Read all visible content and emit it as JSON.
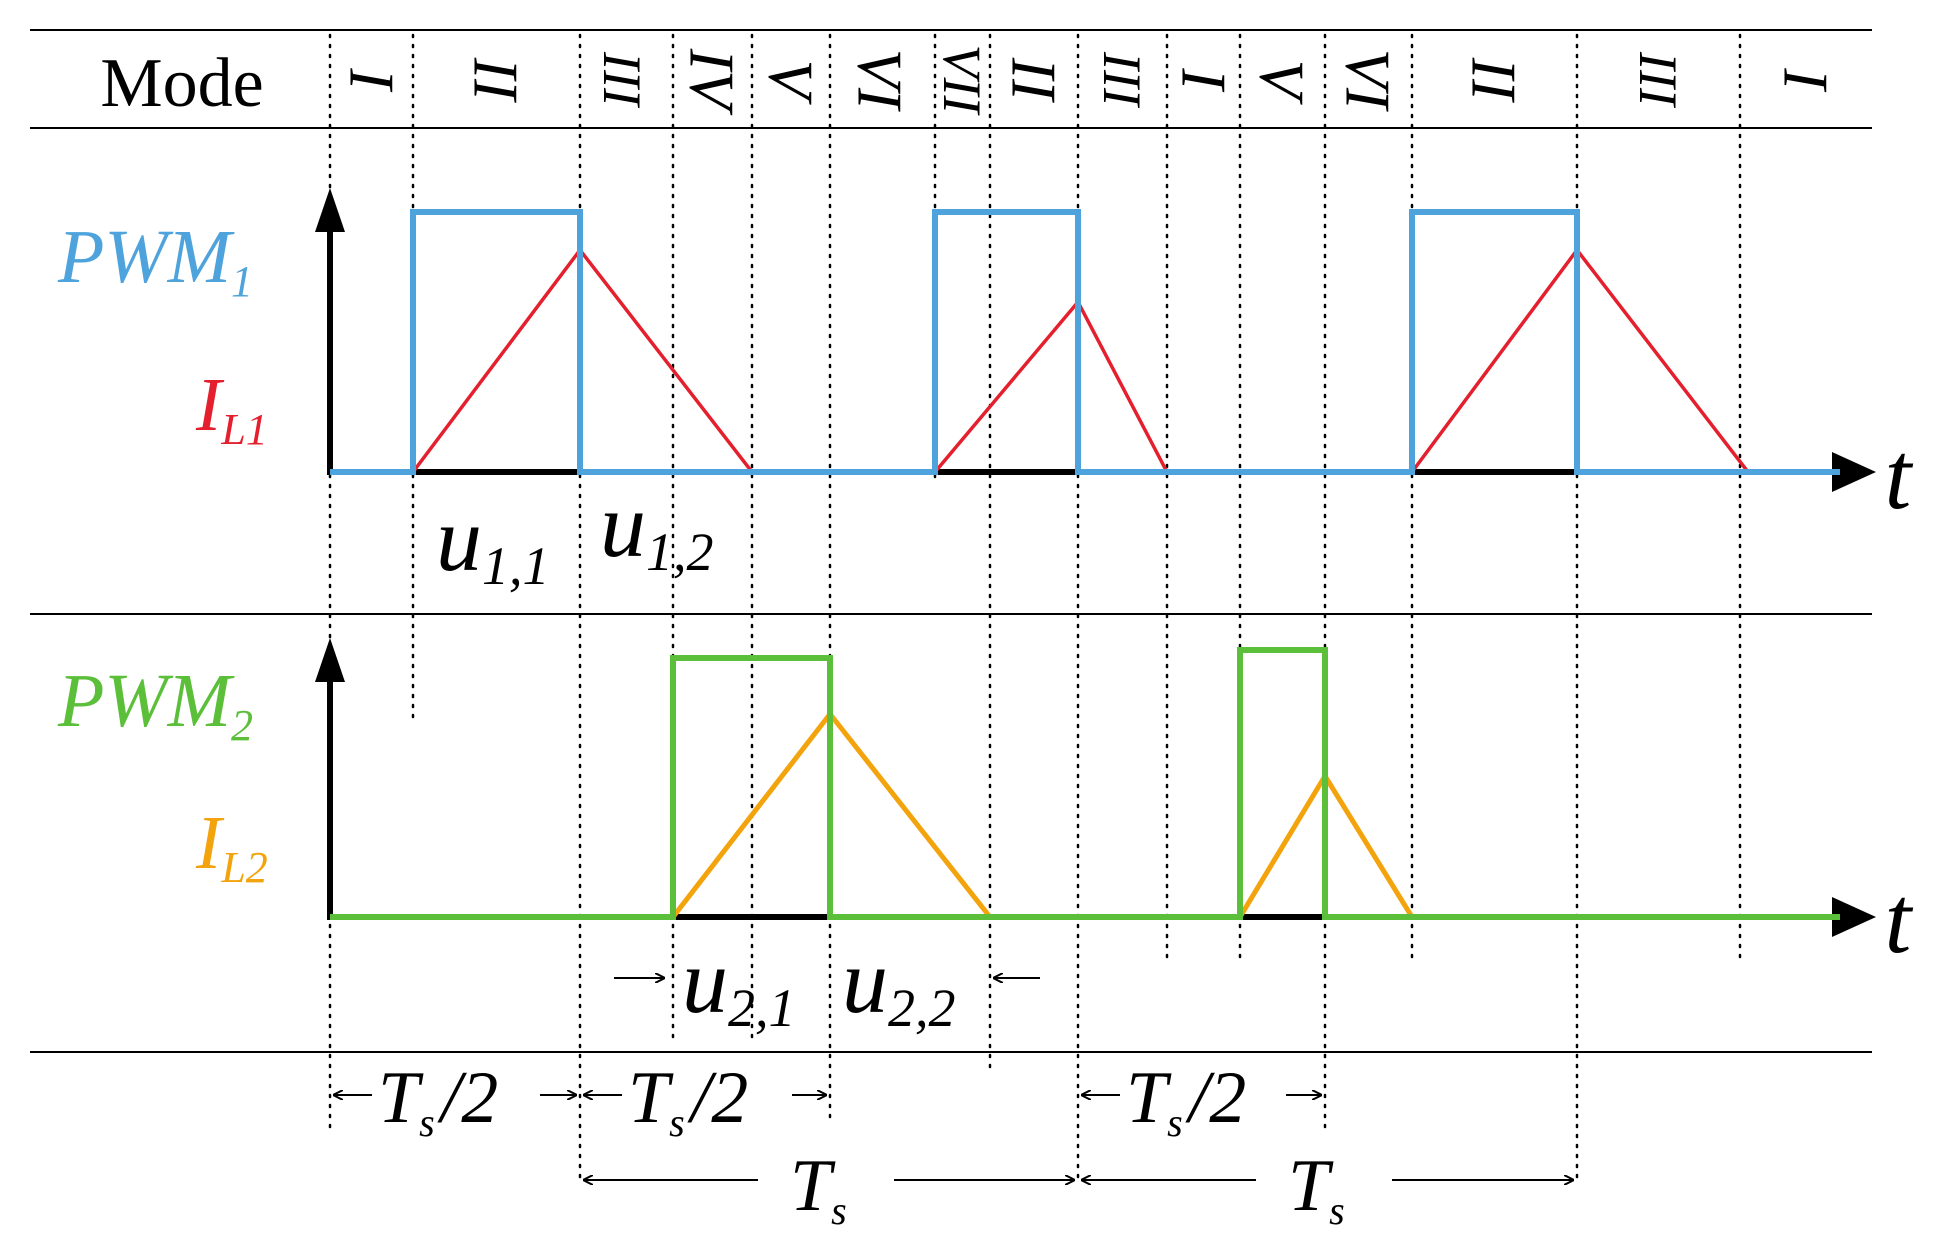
{
  "header": {
    "mode_label": "Mode"
  },
  "modes": [
    "I",
    "II",
    "III",
    "IV",
    "V",
    "VI",
    "VII",
    "II",
    "III",
    "I",
    "V",
    "VI",
    "II",
    "III",
    "I"
  ],
  "axes": {
    "time_label": "t"
  },
  "channel1": {
    "pwm_label_main": "PWM",
    "pwm_label_sub": "1",
    "current_label_main": "I",
    "current_label_sub": "L1",
    "u_first_main": "u",
    "u_first_sub": "1,1",
    "u_second_main": "u",
    "u_second_sub": "1,2",
    "pwm_color": "#4ea3dc",
    "current_color": "#e5202e"
  },
  "channel2": {
    "pwm_label_main": "PWM",
    "pwm_label_sub": "2",
    "current_label_main": "I",
    "current_label_sub": "L2",
    "u_first_main": "u",
    "u_first_sub": "2,1",
    "u_second_main": "u",
    "u_second_sub": "2,2",
    "pwm_color": "#5bbf3a",
    "current_color": "#f3a40c"
  },
  "timing": {
    "half_period_main": "T",
    "half_period_sub": "s",
    "half_period_suffix": "/2",
    "period_main": "T",
    "period_sub": "s"
  }
}
